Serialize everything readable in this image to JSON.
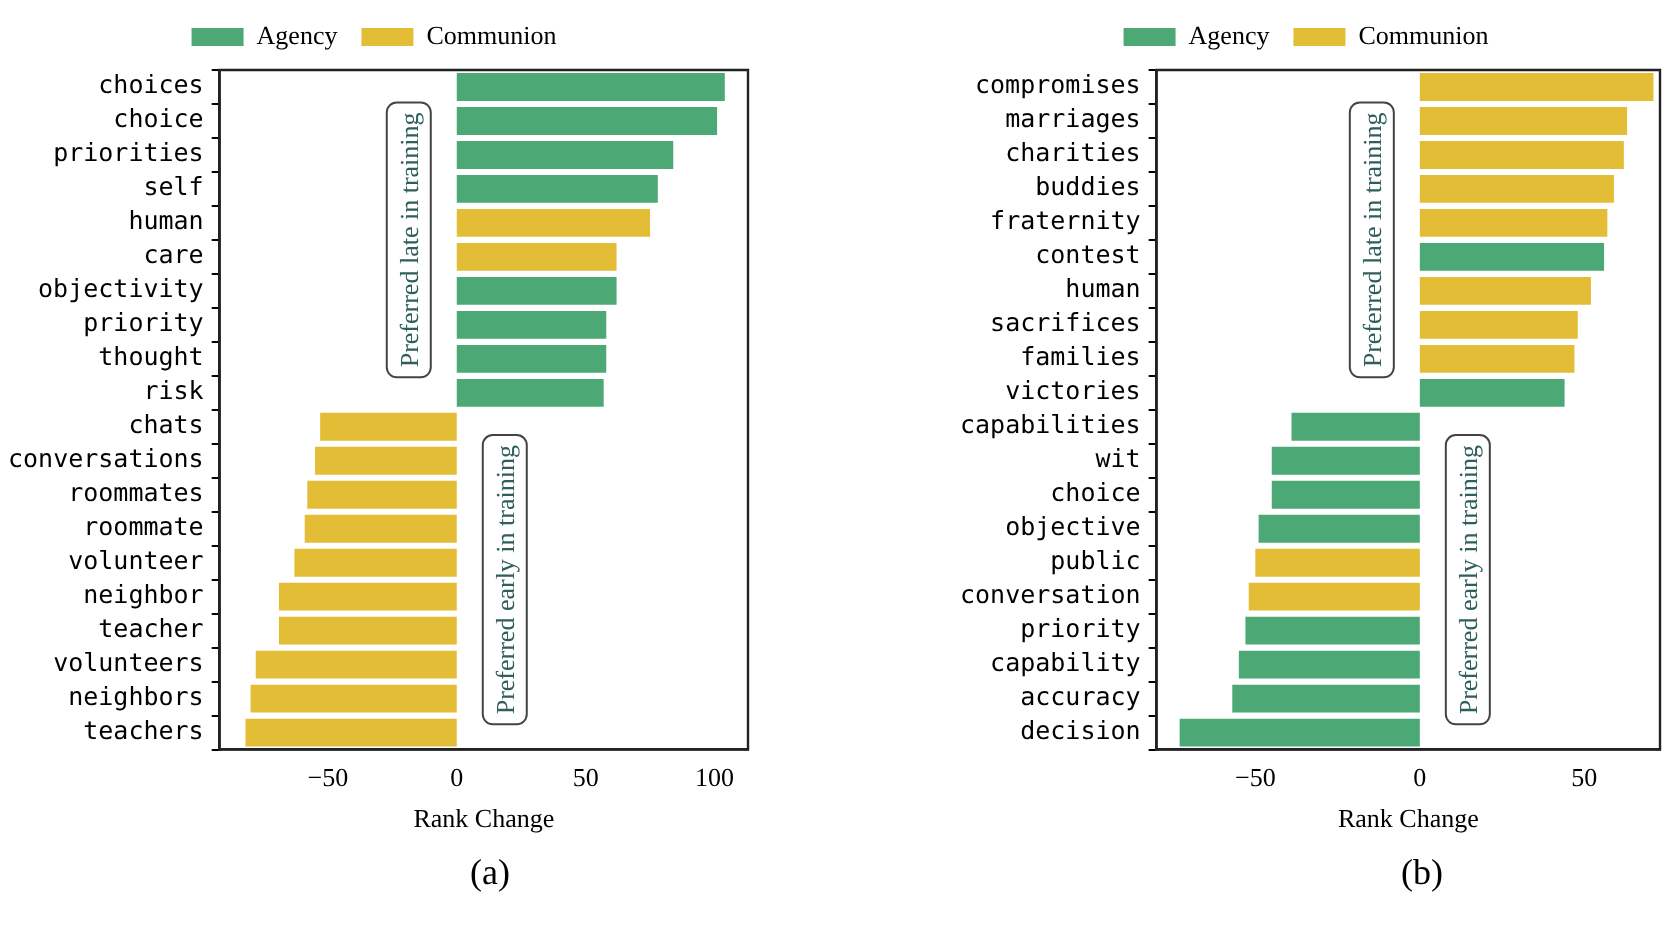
{
  "chart_data": [
    {
      "type": "bar",
      "orientation": "horizontal",
      "title": "(a)",
      "xlabel": "Rank Change",
      "legend": "top",
      "grid": false,
      "categories": [
        "choices",
        "choice",
        "priorities",
        "self",
        "human",
        "care",
        "objectivity",
        "priority",
        "thought",
        "risk",
        "chats",
        "conversations",
        "roommates",
        "roommate",
        "volunteer",
        "neighbor",
        "teacher",
        "volunteers",
        "neighbors",
        "teachers"
      ],
      "series": [
        {
          "name": "Agency",
          "color": "#4ca874",
          "values": [
            104,
            101,
            84,
            78,
            null,
            null,
            62,
            58,
            58,
            57,
            null,
            null,
            null,
            null,
            null,
            null,
            null,
            null,
            null,
            null
          ]
        },
        {
          "name": "Communion",
          "color": "#e3bd36",
          "values": [
            null,
            null,
            null,
            null,
            75,
            62,
            null,
            null,
            null,
            null,
            -53,
            -55,
            -58,
            -59,
            -63,
            -69,
            -69,
            -78,
            -80,
            -82
          ]
        }
      ],
      "xlim": [
        -92,
        113
      ],
      "xticks": [
        {
          "value": -50,
          "label": "−50"
        },
        0,
        50,
        100
      ],
      "annotations": [
        "Preferred late in training",
        "Preferred early in training"
      ]
    },
    {
      "type": "bar",
      "orientation": "horizontal",
      "title": "(b)",
      "xlabel": "Rank Change",
      "legend": "top",
      "grid": false,
      "categories": [
        "compromises",
        "marriages",
        "charities",
        "buddies",
        "fraternity",
        "contest",
        "human",
        "sacrifices",
        "families",
        "victories",
        "capabilities",
        "wit",
        "choice",
        "objective",
        "public",
        "conversation",
        "priority",
        "capability",
        "accuracy",
        "decision"
      ],
      "series": [
        {
          "name": "Agency",
          "color": "#4ca874",
          "values": [
            null,
            null,
            null,
            null,
            null,
            56,
            null,
            null,
            null,
            44,
            -39,
            -45,
            -45,
            -49,
            null,
            null,
            -53,
            -55,
            -57,
            -73
          ]
        },
        {
          "name": "Communion",
          "color": "#e3bd36",
          "values": [
            71,
            63,
            62,
            59,
            57,
            null,
            52,
            48,
            47,
            null,
            null,
            null,
            null,
            null,
            -50,
            -52,
            null,
            null,
            null,
            null
          ]
        }
      ],
      "xlim": [
        -80,
        73
      ],
      "xticks": [
        {
          "value": -50,
          "label": "−50"
        },
        0,
        50
      ],
      "annotations": [
        "Preferred late in training",
        "Preferred early in training"
      ]
    }
  ]
}
